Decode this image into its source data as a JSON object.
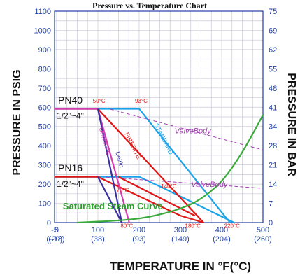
{
  "chart_data": {
    "type": "line",
    "title": "Pressure vs. Temperature Chart",
    "xlabel": "TEMPERATURE IN °F(°C)",
    "ylabel_left": "PRESSURE IN PSIG",
    "ylabel_right": "PRESSURE IN BAR",
    "xlim": [
      -5,
      500
    ],
    "ylim": [
      0,
      1100
    ],
    "x_ticks": [
      {
        "f": "-5",
        "c": "(-20)",
        "v": -5
      },
      {
        "f": "0",
        "c": "(-18)",
        "v": 0
      },
      {
        "f": "100",
        "c": "(38)",
        "v": 100
      },
      {
        "f": "200",
        "c": "(93)",
        "v": 200
      },
      {
        "f": "300",
        "c": "(149)",
        "v": 300
      },
      {
        "f": "400",
        "c": "(204)",
        "v": 400
      },
      {
        "f": "500",
        "c": "(260)",
        "v": 500
      }
    ],
    "y_ticks_psig": [
      0,
      100,
      200,
      300,
      400,
      500,
      600,
      700,
      800,
      900,
      1000,
      1100
    ],
    "y_ticks_bar": [
      {
        "label": "0",
        "v": 0
      },
      {
        "label": "7",
        "v": 100
      },
      {
        "label": "14",
        "v": 200
      },
      {
        "label": "21",
        "v": 300
      },
      {
        "label": "28",
        "v": 400
      },
      {
        "label": "34",
        "v": 500
      },
      {
        "label": "41",
        "v": 600
      },
      {
        "label": "48",
        "v": 700
      },
      {
        "label": "55",
        "v": 800
      },
      {
        "label": "62",
        "v": 900
      },
      {
        "label": "69",
        "v": 1000
      },
      {
        "label": "75",
        "v": 1100
      }
    ],
    "grid": true,
    "series": [
      {
        "name": "STANDARD",
        "color": "#1aa3e8",
        "points": [
          [
            -5,
            592
          ],
          [
            200,
            592
          ],
          [
            420,
            0
          ]
        ],
        "label_x": 255,
        "label_y": 430,
        "label_rot": 63
      },
      {
        "name": "STANDARD",
        "color": "#1aa3e8",
        "points": [
          [
            -5,
            238
          ],
          [
            200,
            238
          ],
          [
            260,
            178
          ],
          [
            430,
            0
          ]
        ]
      },
      {
        "name": "FIRERITE",
        "color": "#e01515",
        "points": [
          [
            -5,
            592
          ],
          [
            100,
            592
          ],
          [
            356,
            0
          ]
        ],
        "label_x": 180,
        "label_y": 395,
        "label_rot": 63
      },
      {
        "name": "FIRERITE",
        "color": "#e01515",
        "points": [
          [
            -5,
            238
          ],
          [
            100,
            238
          ],
          [
            300,
            36
          ],
          [
            356,
            0
          ]
        ]
      },
      {
        "name": "UHMWPE",
        "color": "#d63bb0",
        "points": [
          [
            -5,
            592
          ],
          [
            100,
            592
          ],
          [
            176,
            0
          ]
        ],
        "label_x": 112,
        "label_y": 420,
        "label_rot": 75
      },
      {
        "name": "Delrin",
        "color": "#3a2fa0",
        "points": [
          [
            100,
            592
          ],
          [
            158,
            0
          ]
        ],
        "label_x": 148,
        "label_y": 325,
        "label_rot": 75
      },
      {
        "name": "",
        "color": "#3a2fa0",
        "points": [
          [
            100,
            238
          ],
          [
            158,
            0
          ]
        ]
      },
      {
        "name": "",
        "color": "#e01515",
        "points": [
          [
            150,
            238
          ],
          [
            335,
            36
          ]
        ]
      },
      {
        "name": "ValveBody",
        "color": "#a040b0",
        "dash": "5,3",
        "points": [
          [
            130,
            590
          ],
          [
            500,
            378
          ]
        ]
      },
      {
        "name": "ValveBody",
        "color": "#a040b0",
        "dash": "5,3",
        "points": [
          [
            120,
            236
          ],
          [
            500,
            178
          ]
        ]
      },
      {
        "name": "Saturated Steam Curve",
        "color": "#3aaa3a",
        "curve": true,
        "points": [
          [
            50,
            0
          ],
          [
            150,
            10
          ],
          [
            220,
            25
          ],
          [
            300,
            70
          ],
          [
            350,
            120
          ],
          [
            400,
            210
          ],
          [
            440,
            330
          ],
          [
            470,
            440
          ],
          [
            500,
            560
          ]
        ]
      }
    ],
    "annotations": [
      {
        "text": "50°C",
        "x": 103,
        "y": 622
      },
      {
        "text": "93°C",
        "x": 205,
        "y": 622
      },
      {
        "text": "70°C",
        "x": 160,
        "y": 158
      },
      {
        "text": "140°C",
        "x": 272,
        "y": 178
      },
      {
        "text": "80°C",
        "x": 170,
        "y": -28
      },
      {
        "text": "180°C",
        "x": 330,
        "y": -28
      },
      {
        "text": "220°C",
        "x": 425,
        "y": -28
      }
    ],
    "pressure_classes": [
      {
        "name": "PN40",
        "size": "1/2\"~4\"",
        "y_name": 620,
        "y_size": 540
      },
      {
        "name": "PN16",
        "size": "1/2\"~4\"",
        "y_name": 265,
        "y_size": 185
      }
    ],
    "valve_body_labels": [
      {
        "text": "ValveBody",
        "x": 330,
        "y": 465
      },
      {
        "text": "ValveBody",
        "x": 370,
        "y": 185
      }
    ],
    "steam_label": {
      "text": "Saturated Steam Curve",
      "x": 15,
      "y": 70
    }
  }
}
